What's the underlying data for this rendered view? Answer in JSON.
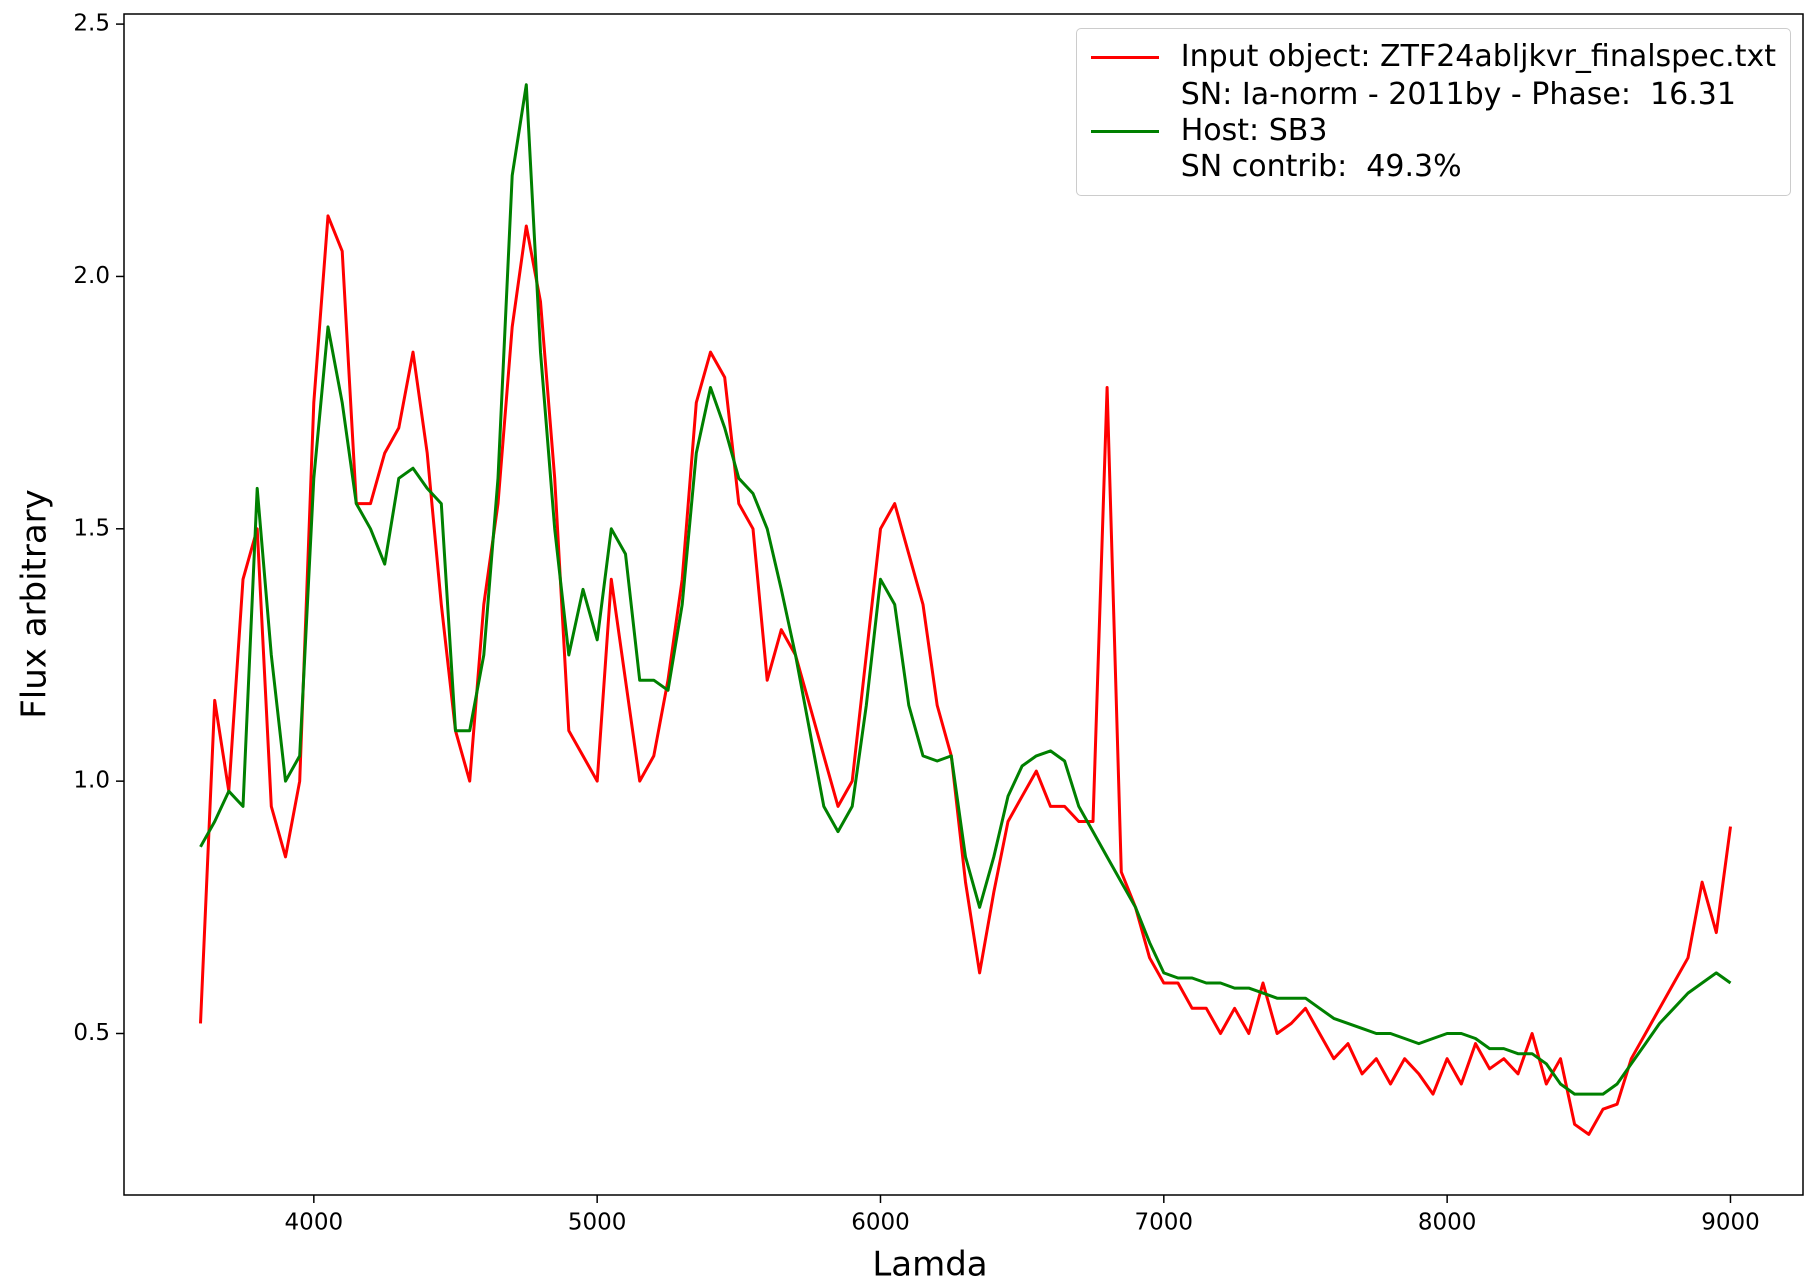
{
  "chart_data": {
    "type": "line",
    "x_label": "Lamda",
    "y_label": "Flux arbitrary",
    "x": [
      3600,
      3650,
      3700,
      3750,
      3800,
      3850,
      3900,
      3950,
      4000,
      4050,
      4100,
      4150,
      4200,
      4250,
      4300,
      4350,
      4400,
      4450,
      4500,
      4550,
      4600,
      4650,
      4700,
      4750,
      4800,
      4850,
      4900,
      4950,
      5000,
      5050,
      5100,
      5150,
      5200,
      5250,
      5300,
      5350,
      5400,
      5450,
      5500,
      5550,
      5600,
      5650,
      5700,
      5750,
      5800,
      5850,
      5900,
      5950,
      6000,
      6050,
      6100,
      6150,
      6200,
      6250,
      6300,
      6350,
      6400,
      6450,
      6500,
      6550,
      6600,
      6650,
      6700,
      6750,
      6800,
      6850,
      6900,
      6950,
      7000,
      7050,
      7100,
      7150,
      7200,
      7250,
      7300,
      7350,
      7400,
      7450,
      7500,
      7550,
      7600,
      7650,
      7700,
      7750,
      7800,
      7850,
      7900,
      7950,
      8000,
      8050,
      8100,
      8150,
      8200,
      8250,
      8300,
      8350,
      8400,
      8450,
      8500,
      8550,
      8600,
      8650,
      8700,
      8750,
      8800,
      8850,
      8900,
      8950,
      9000
    ],
    "series": [
      {
        "name": "Input object: ZTF24abljkvr_finalspec.txt",
        "color": "#ff0000",
        "values": [
          0.52,
          1.16,
          0.98,
          1.4,
          1.5,
          0.95,
          0.85,
          1.0,
          1.75,
          2.12,
          2.05,
          1.55,
          1.55,
          1.65,
          1.7,
          1.85,
          1.65,
          1.35,
          1.1,
          1.0,
          1.35,
          1.55,
          1.9,
          2.1,
          1.95,
          1.6,
          1.1,
          1.05,
          1.0,
          1.4,
          1.2,
          1.0,
          1.05,
          1.2,
          1.4,
          1.75,
          1.85,
          1.8,
          1.55,
          1.5,
          1.2,
          1.3,
          1.25,
          1.15,
          1.05,
          0.95,
          1.0,
          1.25,
          1.5,
          1.55,
          1.45,
          1.35,
          1.15,
          1.05,
          0.8,
          0.62,
          0.78,
          0.92,
          0.97,
          1.02,
          0.95,
          0.95,
          0.92,
          0.92,
          1.78,
          0.82,
          0.75,
          0.65,
          0.6,
          0.6,
          0.55,
          0.55,
          0.5,
          0.55,
          0.5,
          0.6,
          0.5,
          0.52,
          0.55,
          0.5,
          0.45,
          0.48,
          0.42,
          0.45,
          0.4,
          0.45,
          0.42,
          0.38,
          0.45,
          0.4,
          0.48,
          0.43,
          0.45,
          0.42,
          0.5,
          0.4,
          0.45,
          0.32,
          0.3,
          0.35,
          0.36,
          0.45,
          0.5,
          0.55,
          0.6,
          0.65,
          0.8,
          0.7,
          0.91
        ]
      },
      {
        "name": "SN: Ia-norm - 2011by - Phase:  16.31\nHost: SB3\nSN contrib:  49.3%",
        "color": "#008000",
        "values": [
          0.87,
          0.92,
          0.98,
          0.95,
          1.58,
          1.25,
          1.0,
          1.05,
          1.6,
          1.9,
          1.75,
          1.55,
          1.5,
          1.43,
          1.6,
          1.62,
          1.58,
          1.55,
          1.1,
          1.1,
          1.25,
          1.6,
          2.2,
          2.38,
          1.85,
          1.5,
          1.25,
          1.38,
          1.28,
          1.5,
          1.45,
          1.2,
          1.2,
          1.18,
          1.35,
          1.65,
          1.78,
          1.7,
          1.6,
          1.57,
          1.5,
          1.38,
          1.25,
          1.1,
          0.95,
          0.9,
          0.95,
          1.15,
          1.4,
          1.35,
          1.15,
          1.05,
          1.04,
          1.05,
          0.85,
          0.75,
          0.85,
          0.97,
          1.03,
          1.05,
          1.06,
          1.04,
          0.95,
          0.9,
          0.85,
          0.8,
          0.75,
          0.68,
          0.62,
          0.61,
          0.61,
          0.6,
          0.6,
          0.59,
          0.59,
          0.58,
          0.57,
          0.57,
          0.57,
          0.55,
          0.53,
          0.52,
          0.51,
          0.5,
          0.5,
          0.49,
          0.48,
          0.49,
          0.5,
          0.5,
          0.49,
          0.47,
          0.47,
          0.46,
          0.46,
          0.44,
          0.4,
          0.38,
          0.38,
          0.38,
          0.4,
          0.44,
          0.48,
          0.52,
          0.55,
          0.58,
          0.6,
          0.62,
          0.6
        ]
      }
    ],
    "xlim": [
      3330,
      9256
    ],
    "xticks": [
      4000,
      5000,
      6000,
      7000,
      8000,
      9000
    ],
    "ylim": [
      0.18,
      2.52
    ],
    "yticks": [
      0.5,
      {
        "value": 1,
        "label": "1.0"
      },
      1.5,
      {
        "value": 2,
        "label": "2.0"
      },
      2.5
    ],
    "legend": "upper right"
  }
}
